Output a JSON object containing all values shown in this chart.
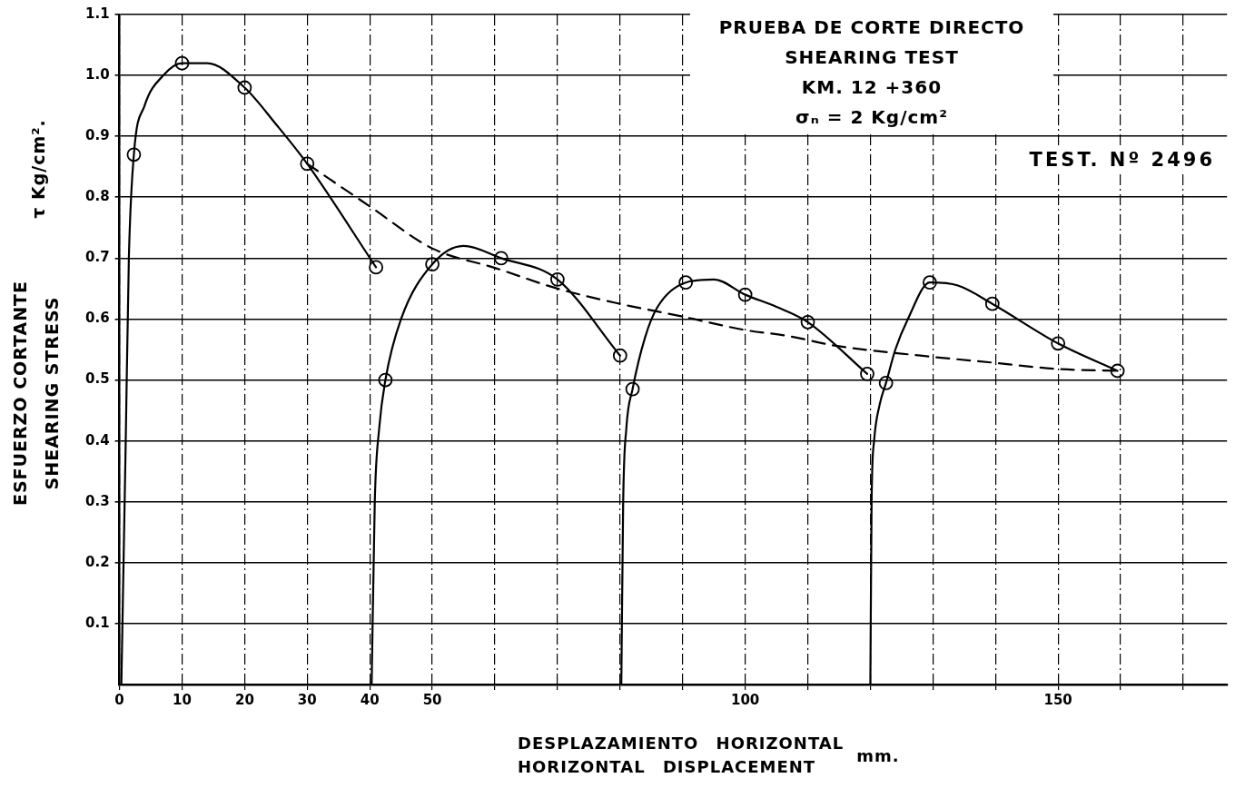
{
  "chart_data": {
    "type": "line",
    "title": "PRUEBA DE CORTE DIRECTO",
    "subtitle": "SHEARING TEST\nKM. 12 +360\nσₙ = 2 Kg/cm²",
    "xlabel": "DESPLAZAMIENTO HORIZONTAL\nHORIZONTAL DISPLACEMENT",
    "ylabel": "ESFUERZO CORTANTE\nSHEARING STRESS\nτ Kg/cm².",
    "annotations": [
      "TEST. Nº 2496",
      "mm."
    ],
    "xlim": [
      0,
      177
    ],
    "ylim": [
      0,
      1.1
    ],
    "xticks": [
      0,
      10,
      20,
      30,
      40,
      50,
      {
        "value": 60,
        "label": null
      },
      {
        "value": 70,
        "label": null
      },
      {
        "value": 80,
        "label": null
      },
      {
        "value": 90,
        "label": null
      },
      100,
      {
        "value": 110,
        "label": null
      },
      {
        "value": 120,
        "label": null
      },
      {
        "value": 130,
        "label": null
      },
      {
        "value": 140,
        "label": null
      },
      150,
      {
        "value": 160,
        "label": null
      },
      {
        "value": 170,
        "label": null
      }
    ],
    "yticks": [
      0.1,
      0.2,
      0.3,
      0.4,
      0.5,
      0.6,
      0.7,
      0.8,
      0.9,
      {
        "value": 1,
        "label": "1.0"
      },
      1.1
    ],
    "grid": true,
    "series": [
      {
        "type": "line",
        "color": "#000000",
        "marker": "none",
        "line_style": "solid",
        "x": [
          0.3,
          1,
          1.5,
          2.3,
          4,
          7,
          10,
          14,
          20,
          25,
          30,
          41
        ],
        "values": [
          0,
          0.4,
          0.7,
          0.87,
          0.95,
          1.0,
          1.02,
          1.02,
          0.98,
          0.92,
          0.855,
          0.685
        ]
      },
      {
        "type": "line",
        "color": "#000000",
        "marker": "none",
        "line_style": "solid",
        "x": [
          40.3,
          40.8,
          41.5,
          42.5,
          45,
          50,
          55,
          61,
          70,
          80
        ],
        "values": [
          0,
          0.3,
          0.42,
          0.5,
          0.6,
          0.69,
          0.72,
          0.7,
          0.665,
          0.54
        ]
      },
      {
        "type": "line",
        "color": "#000000",
        "marker": "none",
        "line_style": "solid",
        "x": [
          80.2,
          80.5,
          81,
          82,
          84,
          86,
          90.5,
          95,
          100,
          105,
          110,
          119.5
        ],
        "values": [
          0,
          0.3,
          0.42,
          0.485,
          0.57,
          0.62,
          0.66,
          0.665,
          0.64,
          0.62,
          0.595,
          0.51
        ]
      },
      {
        "type": "line",
        "color": "#000000",
        "marker": "none",
        "line_style": "solid",
        "x": [
          120,
          120.2,
          120.6,
          121.5,
          122.5,
          124,
          126,
          129.5,
          134,
          139.5,
          150,
          159.5
        ],
        "values": [
          0,
          0.3,
          0.4,
          0.46,
          0.495,
          0.55,
          0.6,
          0.66,
          0.655,
          0.625,
          0.56,
          0.515
        ]
      },
      {
        "type": "line",
        "color": "#000000",
        "marker": "none",
        "line_style": "dashed",
        "x": [
          30,
          40,
          50,
          60,
          70,
          80,
          90,
          100,
          107,
          114,
          128,
          140,
          150,
          159.5
        ],
        "values": [
          0.855,
          0.785,
          0.716,
          0.684,
          0.65,
          0.625,
          0.604,
          0.582,
          0.572,
          0.557,
          0.54,
          0.528,
          0.518,
          0.515
        ]
      },
      {
        "type": "scatter",
        "color": "#000000",
        "marker": "circle",
        "x": [
          2.3,
          10,
          20,
          30,
          41,
          42.5,
          50,
          61,
          70,
          80,
          82,
          90.5,
          100,
          110,
          119.5,
          122.5,
          129.5,
          139.5,
          150,
          159.5
        ],
        "values": [
          0.87,
          1.02,
          0.98,
          0.855,
          0.685,
          0.5,
          0.69,
          0.7,
          0.665,
          0.54,
          0.485,
          0.66,
          0.64,
          0.595,
          0.51,
          0.495,
          0.66,
          0.625,
          0.56,
          0.515
        ]
      }
    ]
  }
}
